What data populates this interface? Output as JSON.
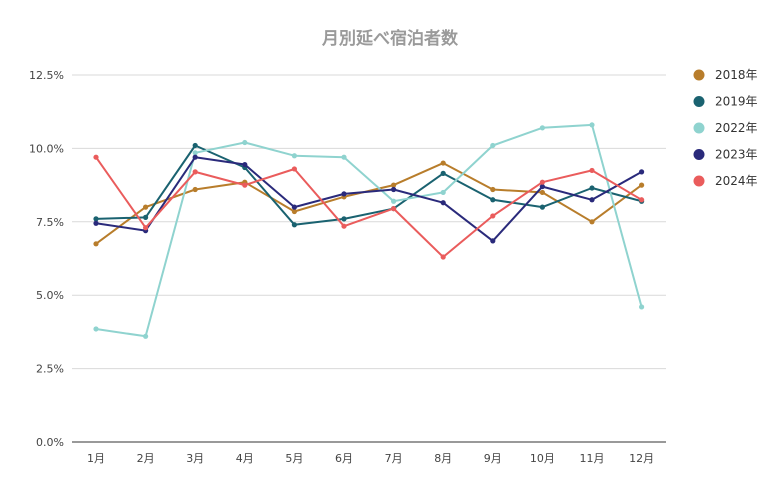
{
  "chart_data": {
    "type": "line",
    "title": "月別延べ宿泊者数",
    "categories": [
      "1月",
      "2月",
      "3月",
      "4月",
      "5月",
      "6月",
      "7月",
      "8月",
      "9月",
      "10月",
      "11月",
      "12月"
    ],
    "y_ticks": [
      "0.0%",
      "2.5%",
      "5.0%",
      "7.5%",
      "10.0%",
      "12.5%"
    ],
    "y_tick_values": [
      0,
      2.5,
      5,
      7.5,
      10,
      12.5
    ],
    "ylim": [
      0,
      12.5
    ],
    "grid": true,
    "legend_position": "right",
    "series": [
      {
        "name": "2018年",
        "color": "#b87d2b",
        "values": [
          6.75,
          8.0,
          8.6,
          8.85,
          7.85,
          8.35,
          8.75,
          9.5,
          8.6,
          8.5,
          7.5,
          8.75
        ]
      },
      {
        "name": "2019年",
        "color": "#1a6270",
        "values": [
          7.6,
          7.65,
          10.1,
          9.35,
          7.4,
          7.6,
          7.95,
          9.15,
          8.25,
          8.0,
          8.65,
          8.2
        ]
      },
      {
        "name": "2022年",
        "color": "#8fd3cf",
        "values": [
          3.85,
          3.6,
          9.85,
          10.2,
          9.75,
          9.7,
          8.2,
          8.5,
          10.1,
          10.7,
          10.8,
          4.6
        ]
      },
      {
        "name": "2023年",
        "color": "#2a2a7b",
        "values": [
          7.45,
          7.2,
          9.7,
          9.45,
          8.0,
          8.45,
          8.6,
          8.15,
          6.85,
          8.7,
          8.25,
          9.2
        ]
      },
      {
        "name": "2024年",
        "color": "#ea5c5c",
        "values": [
          9.7,
          7.3,
          9.2,
          8.75,
          9.3,
          7.35,
          7.95,
          6.3,
          7.7,
          8.85,
          9.25,
          8.25
        ]
      }
    ]
  }
}
